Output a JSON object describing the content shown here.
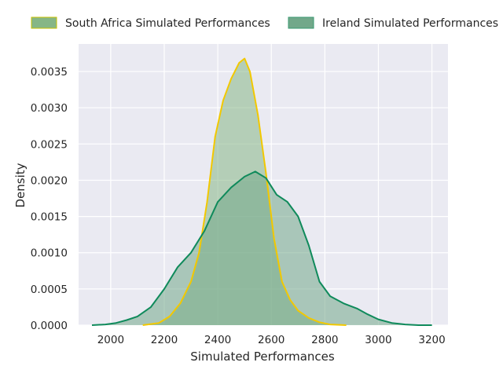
{
  "chart_data": {
    "type": "area",
    "xlabel": "Simulated Performances",
    "ylabel": "Density",
    "xlim": [
      1880,
      3260
    ],
    "ylim": [
      0,
      0.00388
    ],
    "x_ticks": [
      2000,
      2200,
      2400,
      2600,
      2800,
      3000,
      3200
    ],
    "x_tick_labels": [
      "2000",
      "2200",
      "2400",
      "2600",
      "2800",
      "3000",
      "3200"
    ],
    "y_ticks": [
      0,
      0.0005,
      0.001,
      0.0015,
      0.002,
      0.0025,
      0.003,
      0.0035
    ],
    "y_tick_labels": [
      "0.0000",
      "0.0005",
      "0.0010",
      "0.0015",
      "0.0020",
      "0.0025",
      "0.0030",
      "0.0035"
    ],
    "grid": true,
    "legend_position": "top",
    "series": [
      {
        "name": "South Africa Simulated Performances",
        "fill_color": "#86b686",
        "line_color": "#f2c800",
        "points": [
          [
            2120,
            0
          ],
          [
            2180,
            3e-05
          ],
          [
            2220,
            0.00012
          ],
          [
            2260,
            0.0003
          ],
          [
            2300,
            0.0006
          ],
          [
            2330,
            0.001
          ],
          [
            2360,
            0.0017
          ],
          [
            2390,
            0.0026
          ],
          [
            2420,
            0.0031
          ],
          [
            2450,
            0.0034
          ],
          [
            2480,
            0.00362
          ],
          [
            2500,
            0.00368
          ],
          [
            2520,
            0.0035
          ],
          [
            2550,
            0.0029
          ],
          [
            2580,
            0.0021
          ],
          [
            2610,
            0.0012
          ],
          [
            2640,
            0.0006
          ],
          [
            2670,
            0.00035
          ],
          [
            2700,
            0.0002
          ],
          [
            2740,
            0.0001
          ],
          [
            2780,
            4e-05
          ],
          [
            2820,
            1e-05
          ],
          [
            2880,
            0
          ]
        ]
      },
      {
        "name": "Ireland Simulated Performances",
        "fill_color": "#72a88a",
        "line_color": "#0f8a5b",
        "points": [
          [
            1930,
            0
          ],
          [
            1980,
            1e-05
          ],
          [
            2020,
            3e-05
          ],
          [
            2060,
            7e-05
          ],
          [
            2100,
            0.00012
          ],
          [
            2150,
            0.00025
          ],
          [
            2200,
            0.0005
          ],
          [
            2250,
            0.0008
          ],
          [
            2300,
            0.001
          ],
          [
            2350,
            0.0013
          ],
          [
            2400,
            0.0017
          ],
          [
            2450,
            0.0019
          ],
          [
            2500,
            0.00205
          ],
          [
            2540,
            0.00212
          ],
          [
            2580,
            0.00203
          ],
          [
            2620,
            0.0018
          ],
          [
            2660,
            0.0017
          ],
          [
            2700,
            0.0015
          ],
          [
            2740,
            0.0011
          ],
          [
            2780,
            0.0006
          ],
          [
            2820,
            0.0004
          ],
          [
            2870,
            0.0003
          ],
          [
            2920,
            0.00023
          ],
          [
            2960,
            0.00015
          ],
          [
            3000,
            8e-05
          ],
          [
            3050,
            3e-05
          ],
          [
            3100,
            1e-05
          ],
          [
            3150,
            0
          ],
          [
            3200,
            0
          ]
        ]
      }
    ]
  }
}
